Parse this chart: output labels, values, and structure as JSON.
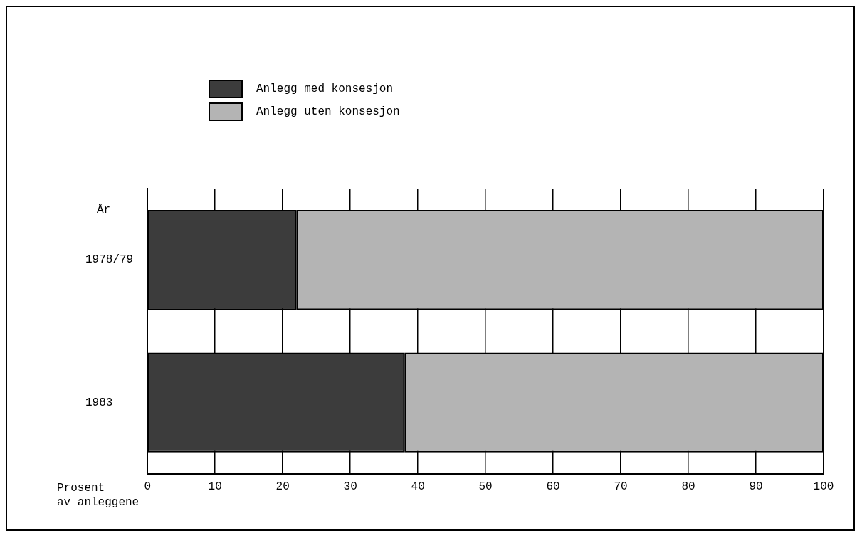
{
  "chart_data": {
    "type": "bar",
    "orientation": "horizontal",
    "stacked": true,
    "xlabel": "Prosent\nav anleggene",
    "ylabel": "År",
    "categories": [
      "1978/79",
      "1983"
    ],
    "series": [
      {
        "name": "Anlegg med konsesjon",
        "color": "#3c3c3c",
        "values": [
          22,
          38
        ]
      },
      {
        "name": "Anlegg uten konsesjon",
        "color": "#b4b4b4",
        "values": [
          78,
          62
        ]
      }
    ],
    "xlim": [
      0,
      100
    ],
    "xticks": [
      0,
      10,
      20,
      30,
      40,
      50,
      60,
      70,
      80,
      90,
      100
    ],
    "grid": "x",
    "legend": "top left"
  }
}
